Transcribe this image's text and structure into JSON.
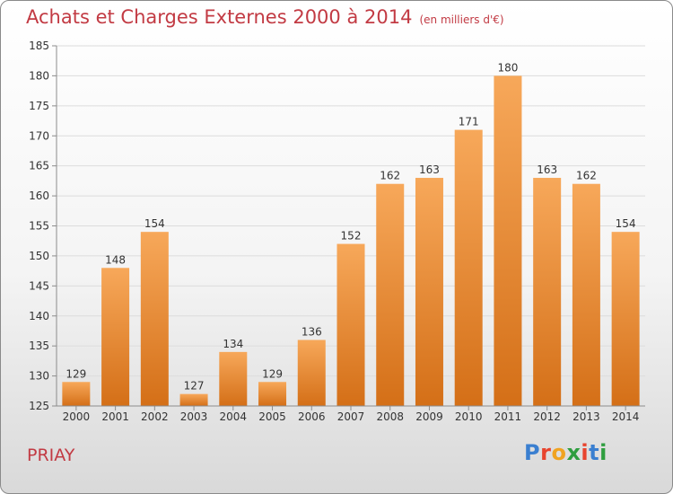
{
  "header": {
    "title": "Achats et Charges Externes 2000 à 2014",
    "unit": "(en milliers d'€)"
  },
  "footer": {
    "commune": "PRIAY",
    "brand_letters": [
      "P",
      "r",
      "o",
      "x",
      "i",
      "t",
      "i"
    ],
    "brand_colors": [
      "#3a7fd0",
      "#e8442e",
      "#f0a321",
      "#2f9e3f",
      "#e8442e",
      "#3a7fd0",
      "#2f9e3f"
    ]
  },
  "colors": {
    "title": "#c23a43",
    "bar_top": "#f7a85a",
    "bar_bottom": "#d46f17",
    "grid": "#dcdcdc",
    "axis": "#8c8c8c",
    "text": "#333333"
  },
  "chart_data": {
    "type": "bar",
    "title": "Achats et Charges Externes 2000 à 2014",
    "subtitle": "(en milliers d'€)",
    "xlabel": "",
    "ylabel": "",
    "categories": [
      "2000",
      "2001",
      "2002",
      "2003",
      "2004",
      "2005",
      "2006",
      "2007",
      "2008",
      "2009",
      "2010",
      "2011",
      "2012",
      "2013",
      "2014"
    ],
    "values": [
      129,
      148,
      154,
      127,
      134,
      129,
      136,
      152,
      162,
      163,
      171,
      180,
      163,
      162,
      154
    ],
    "ylim": [
      125,
      185
    ],
    "yticks": [
      125,
      130,
      135,
      140,
      145,
      150,
      155,
      160,
      165,
      170,
      175,
      180,
      185
    ],
    "grid": true,
    "legend": "none"
  }
}
